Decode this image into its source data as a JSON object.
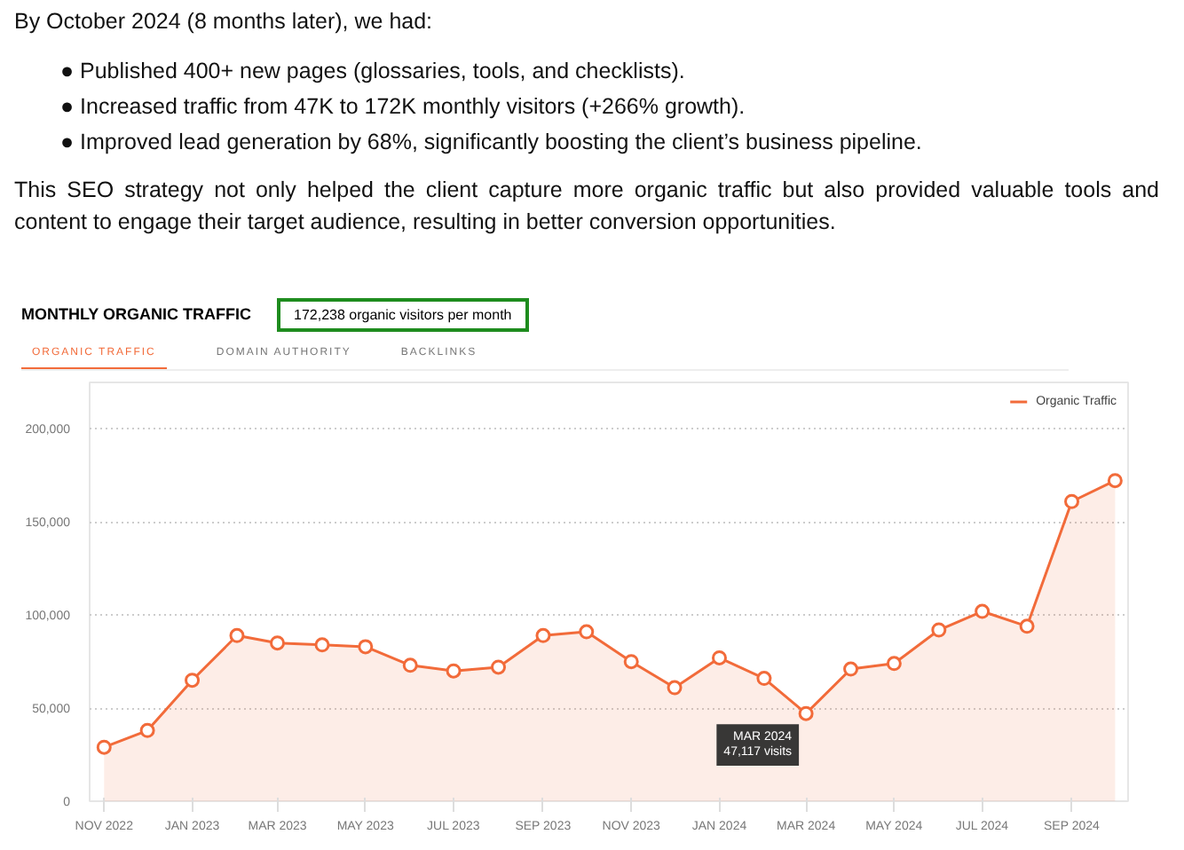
{
  "chart_data": {
    "type": "area",
    "title": "MONTHLY ORGANIC TRAFFIC",
    "subtitle": "172,238 organic visitors per month",
    "annotations": [
      "By October 2024 (8 months later), we had:",
      "●  Published 400+ new pages (glossaries, tools, and checklists).",
      "●  Increased traffic from 47K to 172K monthly visitors (+266% growth).",
      "●  Improved lead generation by 68%, significantly boosting the client’s business pipeline.",
      "This SEO strategy not only helped the client capture more organic traffic but also provided valuable tools and content to engage their target audience, resulting in better conversion opportunities.",
      "ORGANIC TRAFFIC",
      "DOMAIN AUTHORITY",
      "BACKLINKS",
      {
        "text": "MAR 2024\n47,117 visits",
        "x": "2024-03",
        "y": 47117
      }
    ],
    "x": [
      "2022-11",
      "2022-12",
      "2023-01",
      "2023-02",
      "2023-03",
      "2023-04",
      "2023-05",
      "2023-06",
      "2023-07",
      "2023-08",
      "2023-09",
      "2023-10",
      "2023-11",
      "2023-12",
      "2024-01",
      "2024-02",
      "2024-03",
      "2024-04",
      "2024-05",
      "2024-06",
      "2024-07",
      "2024-08",
      "2024-09",
      "2024-10"
    ],
    "series": [
      {
        "name": "Organic Traffic",
        "color": "#f26b3a",
        "values": [
          29000,
          38000,
          65000,
          89000,
          85000,
          84000,
          83000,
          73000,
          70000,
          72000,
          89000,
          91000,
          75000,
          61000,
          77000,
          66000,
          47117,
          71000,
          74000,
          92000,
          102000,
          94000,
          161000,
          172238
        ]
      }
    ],
    "xlim": [
      "2022-10-22",
      "2024-10-10"
    ],
    "xticks": [
      {
        "value": "2022-11",
        "label": "NOV 2022"
      },
      {
        "value": "2023-01",
        "label": "JAN 2023"
      },
      {
        "value": "2023-03",
        "label": "MAR 2023"
      },
      {
        "value": "2023-05",
        "label": "MAY 2023"
      },
      {
        "value": "2023-07",
        "label": "JUL 2023"
      },
      {
        "value": "2023-09",
        "label": "SEP 2023"
      },
      {
        "value": "2023-11",
        "label": "NOV 2023"
      },
      {
        "value": "2024-01",
        "label": "JAN 2024"
      },
      {
        "value": "2024-03",
        "label": "MAR 2024"
      },
      {
        "value": "2024-05",
        "label": "MAY 2024"
      },
      {
        "value": "2024-07",
        "label": "JUL 2024"
      },
      {
        "value": "2024-09",
        "label": "SEP 2024"
      }
    ],
    "ylim": [
      0,
      225000
    ],
    "yticks": [
      0,
      {
        "value": 50000,
        "label": "50,000"
      },
      {
        "value": 100000,
        "label": "100,000"
      },
      {
        "value": 150000,
        "label": "150,000"
      },
      {
        "value": 200000,
        "label": "200,000"
      }
    ],
    "grid": "y",
    "legend": "top right",
    "marker": "circle",
    "line_style": "solid"
  }
}
